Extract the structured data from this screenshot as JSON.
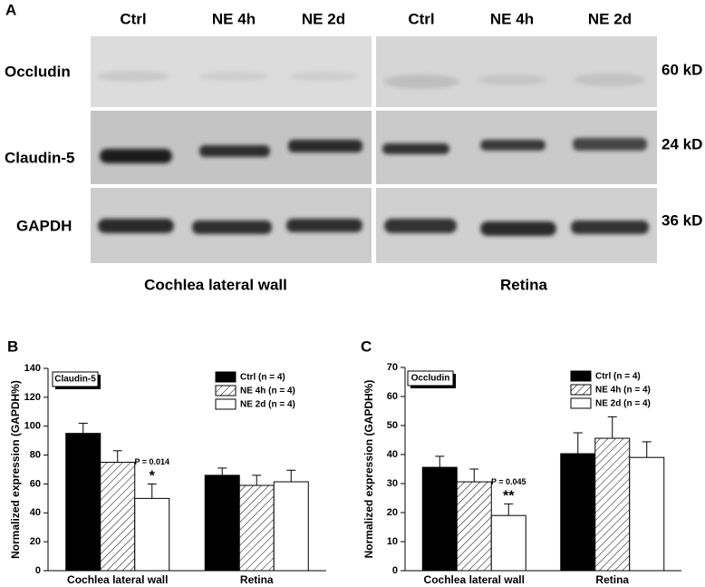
{
  "blot": {
    "panel_label": "A",
    "lanes": [
      "Ctrl",
      "NE 4h",
      "NE 2d",
      "Ctrl",
      "NE 4h",
      "NE 2d"
    ],
    "rows": [
      {
        "label": "Occludin",
        "size": "60 kD"
      },
      {
        "label": "Claudin-5",
        "size": "24 kD"
      },
      {
        "label": "GAPDH",
        "size": "36 kD"
      }
    ],
    "groups": [
      "Cochlea lateral wall",
      "Retina"
    ]
  },
  "chart_data": [
    {
      "type": "bar",
      "panel_label": "B",
      "label_box": "Claudin-5",
      "y_label": "Normalized expression (GAPDH%)",
      "categories": [
        "Cochlea lateral wall",
        "Retina"
      ],
      "series": [
        {
          "name": "Ctrl (n = 4)",
          "color": "#000000",
          "values": [
            95,
            66
          ],
          "errors": [
            7,
            5
          ]
        },
        {
          "name": "NE 4h (n = 4)",
          "color": "#ffffff",
          "hatch": true,
          "values": [
            75,
            59
          ],
          "errors": [
            8,
            7
          ]
        },
        {
          "name": "NE 2d (n = 4)",
          "color": "#ffffff",
          "values": [
            50,
            61.5
          ],
          "errors": [
            10,
            8
          ]
        }
      ],
      "annotations": [
        "P = 0.014",
        "*"
      ],
      "ylim": [
        0,
        140
      ],
      "yticks": [
        0,
        20,
        40,
        60,
        80,
        100,
        120,
        140
      ],
      "legend": "upper right"
    },
    {
      "type": "bar",
      "panel_label": "C",
      "label_box": "Occludin",
      "y_label": "Normalized expression (GAPDH%)",
      "categories": [
        "Cochlea lateral wall",
        "Retina"
      ],
      "series": [
        {
          "name": "Ctrl (n = 4)",
          "color": "#000000",
          "values": [
            35.6,
            40.3
          ],
          "errors": [
            3.8,
            7.2
          ]
        },
        {
          "name": "NE 4h (n = 4)",
          "color": "#ffffff",
          "hatch": true,
          "values": [
            30.6,
            45.6
          ],
          "errors": [
            4.4,
            7.4
          ]
        },
        {
          "name": "NE 2d (n = 4)",
          "color": "#ffffff",
          "values": [
            19,
            39
          ],
          "errors": [
            4,
            5.4
          ]
        }
      ],
      "annotations": [
        "P = 0.045",
        "**"
      ],
      "ylim": [
        0,
        70
      ],
      "yticks": [
        0,
        10,
        20,
        30,
        40,
        50,
        60,
        70
      ],
      "legend": "upper right"
    }
  ]
}
